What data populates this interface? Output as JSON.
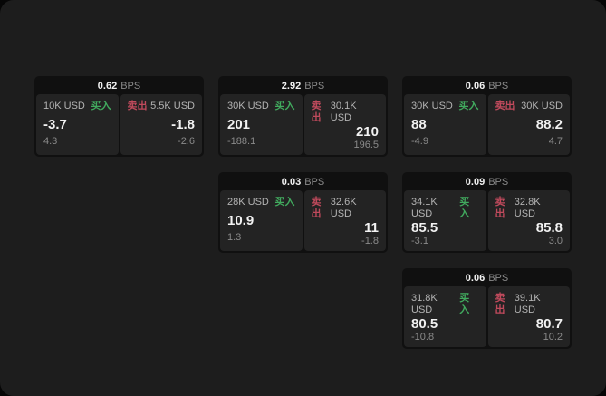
{
  "labels": {
    "bps_unit": "BPS",
    "buy_label": "买入",
    "sell_label": "卖出"
  },
  "colors": {
    "page_bg": "#1d1d1d",
    "card_bg": "#101010",
    "panel_bg": "#232323",
    "text_white": "#f2f2f2",
    "text_label": "#b3b3b3",
    "text_dim": "#8a8a8a",
    "buy_green": "#41aa5e",
    "sell_red": "#c04a5c"
  },
  "cards": [
    {
      "bps": "0.62",
      "row": 1,
      "col": 1,
      "buy": {
        "amount": "10K USD",
        "value": "-3.7",
        "delta": "4.3"
      },
      "sell": {
        "amount": "5.5K USD",
        "value": "-1.8",
        "delta": "-2.6"
      }
    },
    {
      "bps": "2.92",
      "row": 1,
      "col": 2,
      "buy": {
        "amount": "30K USD",
        "value": "201",
        "delta": "-188.1"
      },
      "sell": {
        "amount": "30.1K USD",
        "value": "210",
        "delta": "196.5"
      }
    },
    {
      "bps": "0.06",
      "row": 1,
      "col": 3,
      "buy": {
        "amount": "30K USD",
        "value": "88",
        "delta": "-4.9"
      },
      "sell": {
        "amount": "30K USD",
        "value": "88.2",
        "delta": "4.7"
      }
    },
    {
      "bps": "0.03",
      "row": 2,
      "col": 2,
      "buy": {
        "amount": "28K USD",
        "value": "10.9",
        "delta": "1.3"
      },
      "sell": {
        "amount": "32.6K USD",
        "value": "11",
        "delta": "-1.8"
      }
    },
    {
      "bps": "0.09",
      "row": 2,
      "col": 3,
      "buy": {
        "amount": "34.1K USD",
        "value": "85.5",
        "delta": "-3.1"
      },
      "sell": {
        "amount": "32.8K USD",
        "value": "85.8",
        "delta": "3.0"
      }
    },
    {
      "bps": "0.06",
      "row": 3,
      "col": 3,
      "buy": {
        "amount": "31.8K USD",
        "value": "80.5",
        "delta": "-10.8"
      },
      "sell": {
        "amount": "39.1K USD",
        "value": "80.7",
        "delta": "10.2"
      }
    }
  ]
}
